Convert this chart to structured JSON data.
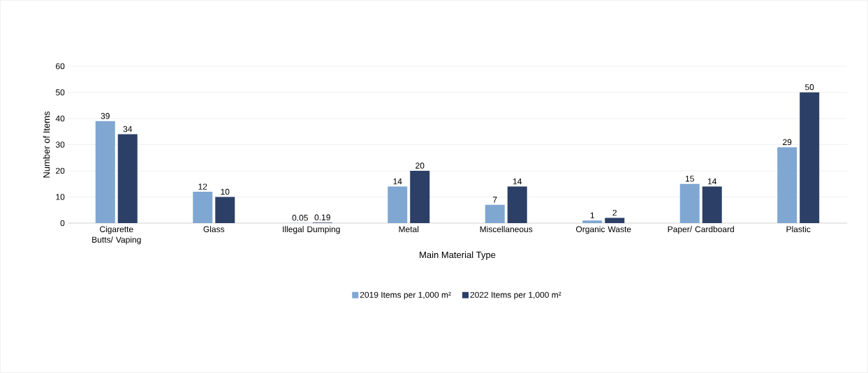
{
  "chart_data": {
    "type": "bar",
    "xlabel": "Main Material Type",
    "ylabel": "Number of Items",
    "categories": [
      "Cigarette Butts/ Vaping",
      "Glass",
      "Illegal Dumping",
      "Metal",
      "Miscellaneous",
      "Organic Waste",
      "Paper/ Cardboard",
      "Plastic"
    ],
    "series": [
      {
        "name": "2019 Items per 1,000 m²",
        "color": "#7fa7d1",
        "values": [
          39,
          12,
          0.05,
          14,
          7,
          1,
          15,
          29
        ]
      },
      {
        "name": "2022 Items per 1,000 m²",
        "color": "#2b3f67",
        "values": [
          34,
          10,
          0.19,
          20,
          14,
          2,
          14,
          50
        ]
      }
    ],
    "ylim": [
      0,
      60
    ],
    "yticks": [
      0,
      10,
      20,
      30,
      40,
      50,
      60
    ],
    "grid": "y",
    "legend": "bottom",
    "data_labels": true
  }
}
